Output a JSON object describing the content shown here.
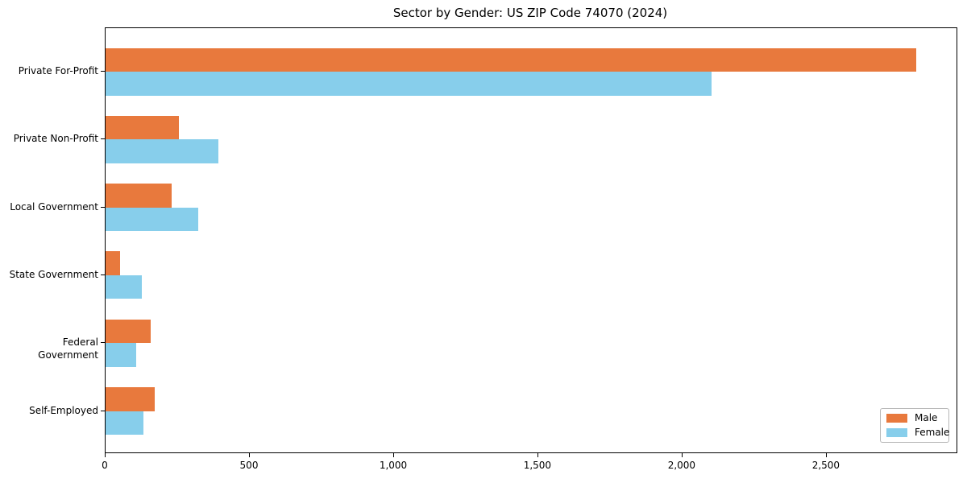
{
  "title": "Sector by Gender: US ZIP Code 74070 (2024)",
  "chart_data": {
    "type": "bar",
    "orientation": "horizontal",
    "title": "Sector by Gender: US ZIP Code 74070 (2024)",
    "xlabel": "",
    "ylabel": "",
    "categories": [
      "Private For-Profit",
      "Private Non-Profit",
      "Local Government",
      "State Government",
      "Federal Government",
      "Self-Employed"
    ],
    "series": [
      {
        "name": "Male",
        "color": "#E8793D",
        "values": [
          2810,
          255,
          230,
          50,
          155,
          170
        ]
      },
      {
        "name": "Female",
        "color": "#87CEEB",
        "values": [
          2100,
          390,
          320,
          125,
          105,
          130
        ]
      }
    ],
    "xlim": [
      0,
      2950
    ],
    "x_ticks": [
      0,
      500,
      1000,
      1500,
      2000,
      2500
    ],
    "x_tick_labels": [
      "0",
      "500",
      "1,000",
      "1,500",
      "2,000",
      "2,500"
    ],
    "grid": false,
    "legend_position": "lower right"
  },
  "legend": {
    "entries": [
      {
        "label": "Male",
        "color": "#E8793D"
      },
      {
        "label": "Female",
        "color": "#87CEEB"
      }
    ]
  }
}
